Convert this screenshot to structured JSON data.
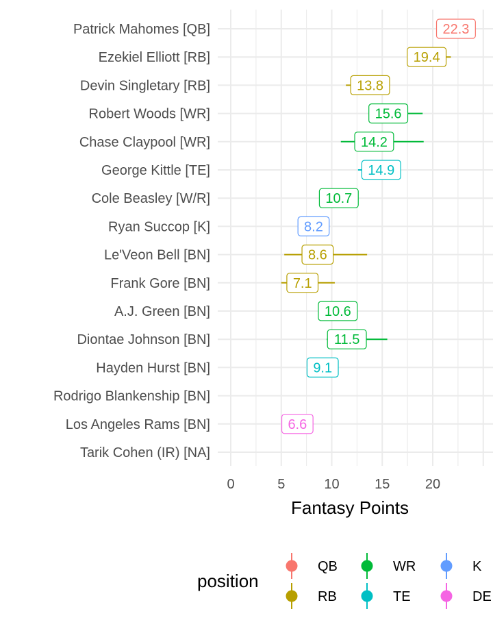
{
  "chart_data": {
    "type": "scatter",
    "xlabel": "Fantasy Points",
    "xlim": [
      -1,
      25
    ],
    "x_ticks": [
      "0",
      "5",
      "10",
      "15",
      "20"
    ],
    "grid": true,
    "legend": {
      "title": "position",
      "placement": "bottom",
      "entries": [
        {
          "key": "QB",
          "label": "QB"
        },
        {
          "key": "RB",
          "label": "RB"
        },
        {
          "key": "WR",
          "label": "WR"
        },
        {
          "key": "TE",
          "label": "TE"
        },
        {
          "key": "K",
          "label": "K"
        },
        {
          "key": "DE",
          "label": "DE"
        }
      ]
    },
    "colors": {
      "QB": "#F8766D",
      "RB": "#B79F00",
      "WR": "#00BA38",
      "TE": "#00BFC4",
      "K": "#619CFF",
      "DE": "#F564E3"
    },
    "players": [
      {
        "name": "Patrick Mahomes [QB]",
        "position": "QB",
        "value": 22.3,
        "label": "22.3",
        "low": null,
        "high": null
      },
      {
        "name": "Ezekiel Elliott [RB]",
        "position": "RB",
        "value": 19.4,
        "label": "19.4",
        "low": 17.6,
        "high": 21.8
      },
      {
        "name": "Devin Singletary [RB]",
        "position": "RB",
        "value": 13.8,
        "label": "13.8",
        "low": 11.4,
        "high": 15.7
      },
      {
        "name": "Robert Woods [WR]",
        "position": "WR",
        "value": 15.6,
        "label": "15.6",
        "low": 13.7,
        "high": 19.0
      },
      {
        "name": "Chase Claypool [WR]",
        "position": "WR",
        "value": 14.2,
        "label": "14.2",
        "low": 10.9,
        "high": 19.1
      },
      {
        "name": "George Kittle [TE]",
        "position": "TE",
        "value": 14.9,
        "label": "14.9",
        "low": 12.6,
        "high": 16.8
      },
      {
        "name": "Cole Beasley [W/R]",
        "position": "WR",
        "value": 10.7,
        "label": "10.7",
        "low": null,
        "high": null
      },
      {
        "name": "Ryan Succop [K]",
        "position": "K",
        "value": 8.2,
        "label": "8.2",
        "low": null,
        "high": null
      },
      {
        "name": "Le'Veon Bell [BN]",
        "position": "RB",
        "value": 8.6,
        "label": "8.6",
        "low": 5.3,
        "high": 13.5
      },
      {
        "name": "Frank Gore [BN]",
        "position": "RB",
        "value": 7.1,
        "label": "7.1",
        "low": 5.0,
        "high": 10.3
      },
      {
        "name": "A.J. Green [BN]",
        "position": "WR",
        "value": 10.6,
        "label": "10.6",
        "low": null,
        "high": null
      },
      {
        "name": "Diontae Johnson [BN]",
        "position": "WR",
        "value": 11.5,
        "label": "11.5",
        "low": 9.5,
        "high": 15.5
      },
      {
        "name": "Hayden Hurst [BN]",
        "position": "TE",
        "value": 9.1,
        "label": "9.1",
        "low": null,
        "high": null
      },
      {
        "name": "Rodrigo Blankenship [BN]",
        "position": null,
        "value": null,
        "label": "",
        "low": null,
        "high": null
      },
      {
        "name": "Los Angeles Rams [BN]",
        "position": "DE",
        "value": 6.6,
        "label": "6.6",
        "low": null,
        "high": null
      },
      {
        "name": "Tarik Cohen (IR) [NA]",
        "position": null,
        "value": null,
        "label": "",
        "low": null,
        "high": null
      }
    ]
  }
}
